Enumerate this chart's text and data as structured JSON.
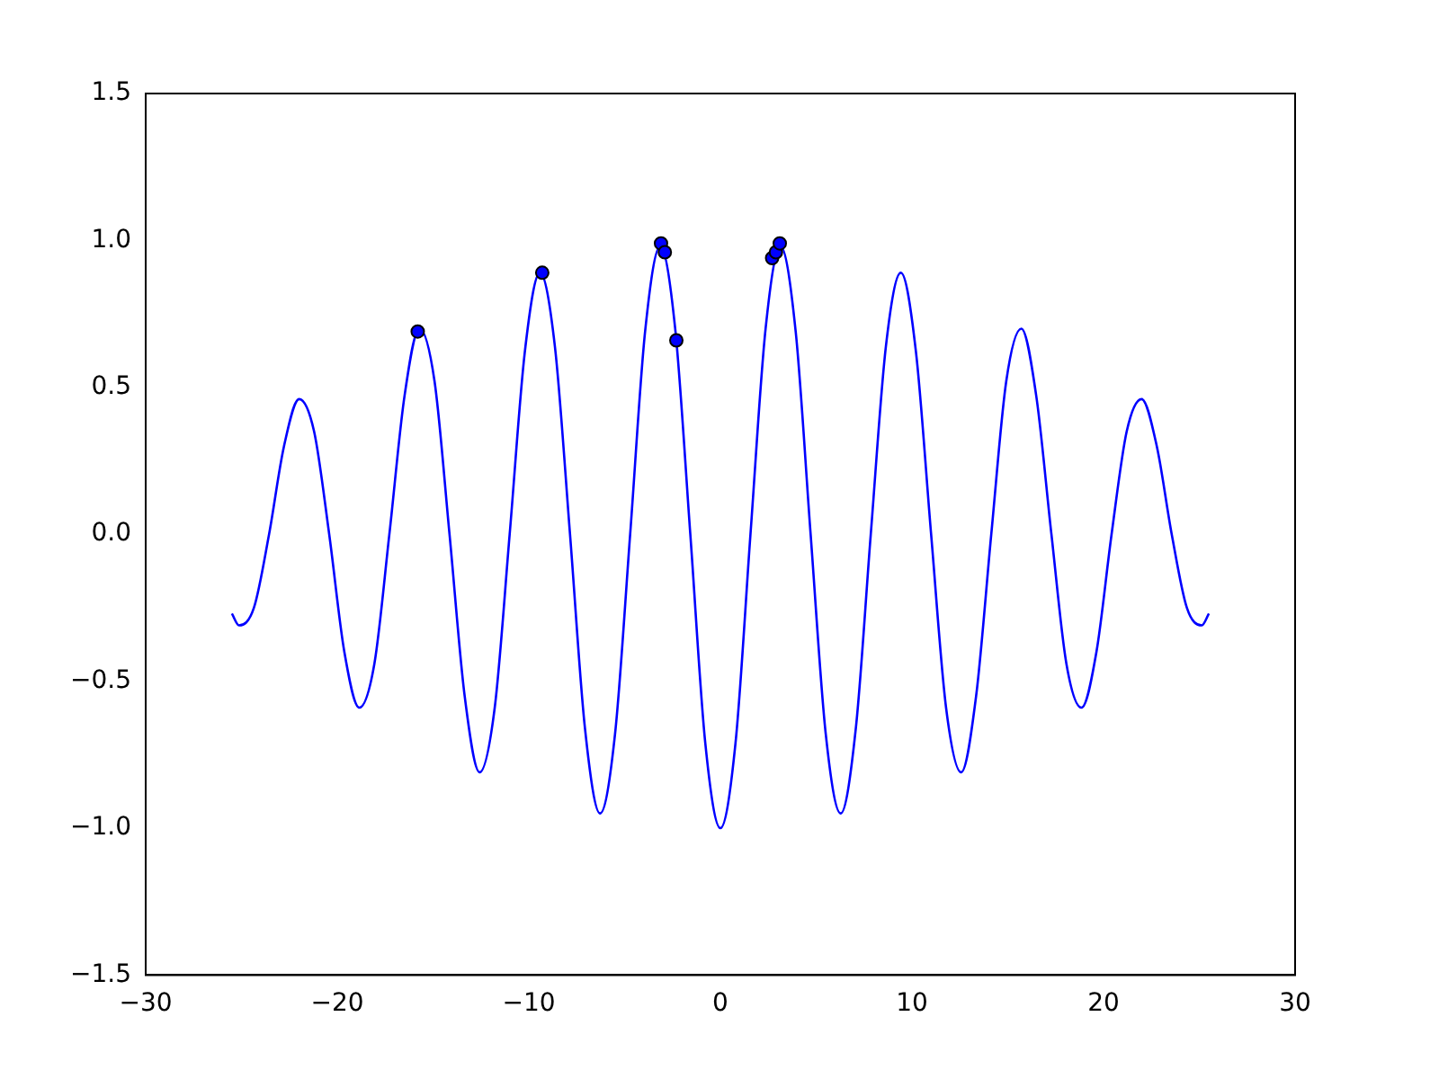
{
  "chart_data": {
    "type": "line",
    "xlim": [
      -30,
      30
    ],
    "ylim": [
      -1.5,
      1.5
    ],
    "xticks": [
      {
        "value": -30,
        "label": "−30"
      },
      {
        "value": -20,
        "label": "−20"
      },
      {
        "value": -10,
        "label": "−10"
      },
      0,
      10,
      20,
      30
    ],
    "yticks": [
      {
        "value": -1.5,
        "label": "−1.5"
      },
      {
        "value": -1,
        "label": "−1.0"
      },
      {
        "value": -0.5,
        "label": "−0.5"
      },
      {
        "value": 0,
        "label": "0.0"
      },
      0.5,
      {
        "value": 1,
        "label": "1.0"
      },
      1.5
    ],
    "grid": false,
    "legend": false,
    "series": [
      {
        "color": "#0000ff",
        "line_style": "solid",
        "x": [
          -25.5,
          -25.13,
          -24.35,
          -23.56,
          -22.78,
          -21.99,
          -21.21,
          -20.42,
          -19.63,
          -18.85,
          -18.06,
          -17.28,
          -16.49,
          -15.71,
          -14.92,
          -14.14,
          -13.35,
          -12.57,
          -11.78,
          -11.0,
          -10.21,
          -9.42,
          -8.64,
          -7.85,
          -7.07,
          -6.28,
          -5.5,
          -4.71,
          -3.93,
          -3.14,
          -2.36,
          -1.57,
          -0.79,
          0,
          0.79,
          1.57,
          2.36,
          3.14,
          3.93,
          4.71,
          5.5,
          6.28,
          7.07,
          7.85,
          8.64,
          9.42,
          10.21,
          11.0,
          11.78,
          12.57,
          13.35,
          14.14,
          14.92,
          15.71,
          16.49,
          17.28,
          18.06,
          18.85,
          19.63,
          20.42,
          21.21,
          21.99,
          22.78,
          23.56,
          24.35,
          25.13,
          25.5
        ],
        "values": [
          -0.27,
          -0.31,
          -0.25,
          0,
          0.3,
          0.46,
          0.35,
          0,
          -0.4,
          -0.59,
          -0.44,
          0,
          0.47,
          0.7,
          0.52,
          0,
          -0.55,
          -0.81,
          -0.59,
          0,
          0.62,
          0.89,
          0.64,
          0,
          -0.66,
          -0.95,
          -0.68,
          0,
          0.69,
          0.98,
          0.7,
          0,
          -0.71,
          -1.0,
          -0.71,
          0,
          0.7,
          0.98,
          0.69,
          0,
          -0.68,
          -0.95,
          -0.66,
          0,
          0.64,
          0.89,
          0.62,
          0,
          -0.59,
          -0.81,
          -0.55,
          0,
          0.52,
          0.7,
          0.47,
          0,
          -0.44,
          -0.59,
          -0.4,
          0,
          0.35,
          0.46,
          0.3,
          0,
          -0.25,
          -0.31,
          -0.27
        ]
      },
      {
        "type": "scatter",
        "color": "#0000ff",
        "marker": "circle",
        "x": [
          -15.8,
          -9.3,
          -3.1,
          -2.9,
          -2.3,
          2.7,
          2.9,
          3.1
        ],
        "values": [
          0.69,
          0.89,
          0.99,
          0.96,
          0.66,
          0.94,
          0.96,
          0.99
        ]
      }
    ]
  }
}
